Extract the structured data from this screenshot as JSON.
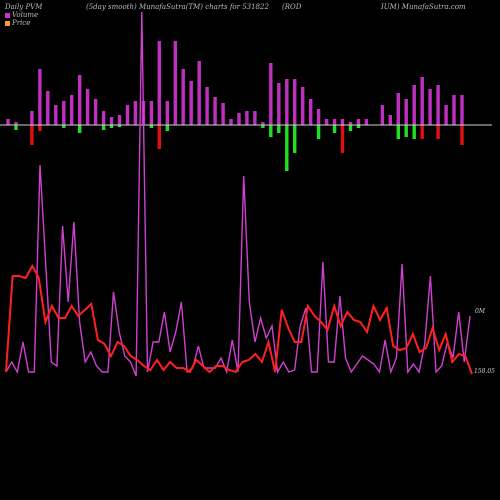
{
  "header": {
    "left": "Daily PVM",
    "center": "(5day smooth) MunafaSutra(TM) charts for 531822",
    "symbol1": "(ROD",
    "symbol2": "IUM) MunafaSutra.com"
  },
  "legend": [
    {
      "label": "Volume",
      "color": "#cc33cc"
    },
    {
      "label": "Price",
      "color": "#ff9933"
    }
  ],
  "colors": {
    "volume_line": "#d040d0",
    "price_line": "#ff2020",
    "bar_purple": "#c030c0",
    "bar_red": "#e01010",
    "bar_green": "#20e020",
    "baseline": "#d0d0d0"
  },
  "chart_data": {
    "type": "line",
    "volume_label": "0M",
    "price_label": "158.05",
    "pvm_bars": [
      {
        "up": 6,
        "down": 0,
        "color": "purple"
      },
      {
        "up": 3,
        "down": 5,
        "color": "green"
      },
      {
        "up": 0,
        "down": 0,
        "color": "purple"
      },
      {
        "up": 14,
        "down": 20,
        "color": "red"
      },
      {
        "up": 56,
        "down": 6,
        "color": "red"
      },
      {
        "up": 34,
        "down": 0,
        "color": "purple"
      },
      {
        "up": 20,
        "down": 0,
        "color": "purple"
      },
      {
        "up": 24,
        "down": 3,
        "color": "green"
      },
      {
        "up": 30,
        "down": 0,
        "color": "purple"
      },
      {
        "up": 50,
        "down": 8,
        "color": "green"
      },
      {
        "up": 36,
        "down": 0,
        "color": "purple"
      },
      {
        "up": 26,
        "down": 0,
        "color": "purple"
      },
      {
        "up": 14,
        "down": 5,
        "color": "green"
      },
      {
        "up": 8,
        "down": 3,
        "color": "green"
      },
      {
        "up": 10,
        "down": 2,
        "color": "green"
      },
      {
        "up": 20,
        "down": 0,
        "color": "purple"
      },
      {
        "up": 24,
        "down": 0,
        "color": "purple"
      },
      {
        "up": 24,
        "down": 0,
        "color": "purple"
      },
      {
        "up": 24,
        "down": 3,
        "color": "green"
      },
      {
        "up": 84,
        "down": 24,
        "color": "red"
      },
      {
        "up": 24,
        "down": 6,
        "color": "green"
      },
      {
        "up": 84,
        "down": 0,
        "color": "purple"
      },
      {
        "up": 56,
        "down": 0,
        "color": "purple"
      },
      {
        "up": 44,
        "down": 0,
        "color": "purple"
      },
      {
        "up": 64,
        "down": 0,
        "color": "purple"
      },
      {
        "up": 38,
        "down": 0,
        "color": "purple"
      },
      {
        "up": 28,
        "down": 0,
        "color": "purple"
      },
      {
        "up": 22,
        "down": 0,
        "color": "purple"
      },
      {
        "up": 6,
        "down": 0,
        "color": "purple"
      },
      {
        "up": 12,
        "down": 0,
        "color": "purple"
      },
      {
        "up": 14,
        "down": 0,
        "color": "purple"
      },
      {
        "up": 14,
        "down": 0,
        "color": "purple"
      },
      {
        "up": 3,
        "down": 3,
        "color": "green"
      },
      {
        "up": 62,
        "down": 12,
        "color": "green"
      },
      {
        "up": 42,
        "down": 8,
        "color": "green"
      },
      {
        "up": 46,
        "down": 46,
        "color": "green"
      },
      {
        "up": 46,
        "down": 28,
        "color": "green"
      },
      {
        "up": 38,
        "down": 0,
        "color": "purple"
      },
      {
        "up": 26,
        "down": 0,
        "color": "purple"
      },
      {
        "up": 16,
        "down": 14,
        "color": "green"
      },
      {
        "up": 6,
        "down": 0,
        "color": "purple"
      },
      {
        "up": 6,
        "down": 8,
        "color": "green"
      },
      {
        "up": 6,
        "down": 28,
        "color": "red"
      },
      {
        "up": 3,
        "down": 6,
        "color": "green"
      },
      {
        "up": 6,
        "down": 3,
        "color": "green"
      },
      {
        "up": 6,
        "down": 0,
        "color": "purple"
      },
      {
        "up": 0,
        "down": 0,
        "color": "purple"
      },
      {
        "up": 20,
        "down": 0,
        "color": "purple"
      },
      {
        "up": 10,
        "down": 0,
        "color": "purple"
      },
      {
        "up": 32,
        "down": 14,
        "color": "green"
      },
      {
        "up": 26,
        "down": 12,
        "color": "green"
      },
      {
        "up": 40,
        "down": 14,
        "color": "green"
      },
      {
        "up": 48,
        "down": 14,
        "color": "red"
      },
      {
        "up": 36,
        "down": 0,
        "color": "purple"
      },
      {
        "up": 40,
        "down": 14,
        "color": "red"
      },
      {
        "up": 20,
        "down": 0,
        "color": "purple"
      },
      {
        "up": 30,
        "down": 0,
        "color": "purple"
      },
      {
        "up": 30,
        "down": 20,
        "color": "red"
      }
    ],
    "volume": [
      372,
      362,
      372,
      342,
      372,
      372,
      165,
      262,
      362,
      366,
      226,
      302,
      222,
      322,
      362,
      352,
      366,
      372,
      372,
      292,
      332,
      356,
      362,
      376,
      12,
      372,
      342,
      342,
      312,
      352,
      332,
      302,
      372,
      368,
      346,
      368,
      368,
      368,
      358,
      372,
      340,
      372,
      176,
      302,
      342,
      318,
      338,
      326,
      372,
      362,
      372,
      370,
      326,
      308,
      372,
      372,
      262,
      362,
      362,
      296,
      358,
      372,
      364,
      356,
      360,
      364,
      372,
      340,
      372,
      358,
      264,
      372,
      364,
      372,
      344,
      276,
      372,
      366,
      342,
      358,
      312,
      362,
      316
    ],
    "price": [
      372,
      276,
      276,
      278,
      266,
      278,
      322,
      306,
      318,
      318,
      306,
      316,
      310,
      304,
      340,
      344,
      356,
      342,
      346,
      356,
      360,
      366,
      370,
      360,
      370,
      362,
      368,
      368,
      372,
      360,
      366,
      372,
      366,
      366,
      370,
      372,
      362,
      360,
      354,
      362,
      342,
      372,
      310,
      328,
      342,
      342,
      306,
      316,
      322,
      330,
      306,
      326,
      312,
      320,
      322,
      332,
      306,
      320,
      308,
      346,
      350,
      348,
      334,
      352,
      348,
      328,
      350,
      334,
      362,
      354,
      356,
      374
    ]
  }
}
